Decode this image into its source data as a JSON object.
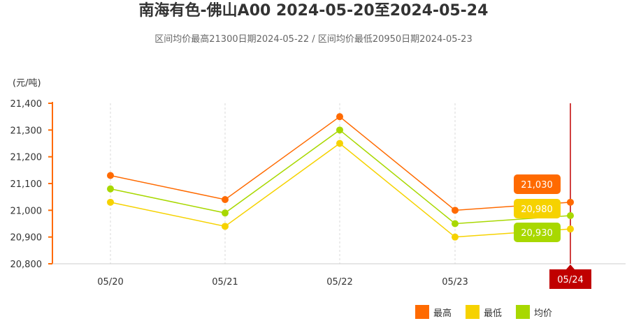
{
  "title": "南海有色-佛山A00 2024-05-20至2024-05-24",
  "subtitle": "区间均价最高21300日期2024-05-22 / 区间均价最低20950日期2024-05-23",
  "chart_data": {
    "type": "line",
    "unit_label": "(元/吨)",
    "categories": [
      "05/20",
      "05/21",
      "05/22",
      "05/23",
      "05/24"
    ],
    "ylim": [
      20800,
      21400
    ],
    "yticks": [
      20800,
      20900,
      21000,
      21100,
      21200,
      21300,
      21400
    ],
    "ytick_labels": [
      "20,800",
      "20,900",
      "21,000",
      "21,100",
      "21,200",
      "21,300",
      "21,400"
    ],
    "grid": "vertical dashed",
    "legend_position": "bottom-right",
    "highlighted_category": "05/24",
    "series": [
      {
        "name": "最高",
        "color": "#FF6A00",
        "values": [
          21130,
          21040,
          21350,
          21000,
          21030
        ]
      },
      {
        "name": "最低",
        "color": "#F6D200",
        "values": [
          21030,
          20940,
          21250,
          20900,
          20930
        ]
      },
      {
        "name": "均价",
        "color": "#A8D800",
        "values": [
          21080,
          20990,
          21300,
          20950,
          20980
        ]
      }
    ],
    "last_value_labels": [
      "21,030",
      "20,980",
      "20,930"
    ]
  }
}
